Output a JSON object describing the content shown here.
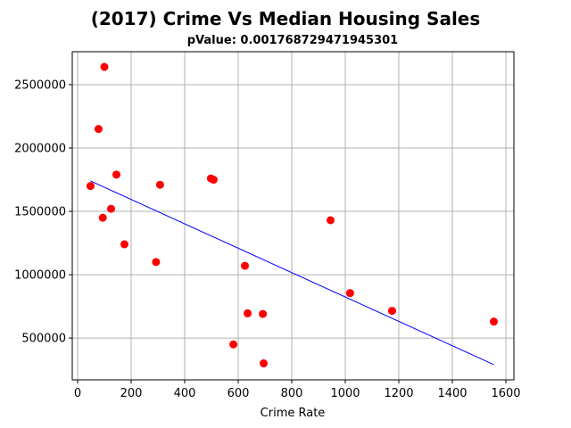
{
  "chart_data": {
    "type": "scatter",
    "title": "(2017) Crime Vs Median Housing Sales",
    "subtitle": "pValue: 0.001768729471945301",
    "xlabel": "Crime Rate",
    "ylabel": "",
    "xlim": [
      -20,
      1630
    ],
    "ylim": [
      170000,
      2760000
    ],
    "xticks": [
      0,
      200,
      400,
      600,
      800,
      1000,
      1200,
      1400,
      1600
    ],
    "yticks": [
      500000,
      1000000,
      1500000,
      2000000,
      2500000
    ],
    "xtick_labels": [
      "0",
      "200",
      "400",
      "600",
      "800",
      "1000",
      "1200",
      "1400",
      "1600"
    ],
    "ytick_labels": [
      "500000",
      "1000000",
      "1500000",
      "2000000",
      "2500000"
    ],
    "grid": true,
    "series": [
      {
        "marker_color": "#ff0000",
        "points": [
          {
            "x": 100,
            "y": 2640000
          },
          {
            "x": 78,
            "y": 2150000
          },
          {
            "x": 145,
            "y": 1790000
          },
          {
            "x": 308,
            "y": 1710000
          },
          {
            "x": 498,
            "y": 1760000
          },
          {
            "x": 508,
            "y": 1750000
          },
          {
            "x": 48,
            "y": 1700000
          },
          {
            "x": 125,
            "y": 1520000
          },
          {
            "x": 94,
            "y": 1450000
          },
          {
            "x": 945,
            "y": 1430000
          },
          {
            "x": 175,
            "y": 1240000
          },
          {
            "x": 293,
            "y": 1100000
          },
          {
            "x": 625,
            "y": 1070000
          },
          {
            "x": 1018,
            "y": 855000
          },
          {
            "x": 1175,
            "y": 715000
          },
          {
            "x": 635,
            "y": 695000
          },
          {
            "x": 692,
            "y": 690000
          },
          {
            "x": 1555,
            "y": 630000
          },
          {
            "x": 582,
            "y": 450000
          },
          {
            "x": 695,
            "y": 300000
          }
        ]
      }
    ],
    "regression_line": {
      "color": "#0000ff",
      "x": [
        48,
        1555
      ],
      "y": [
        1740000,
        290000
      ]
    }
  }
}
